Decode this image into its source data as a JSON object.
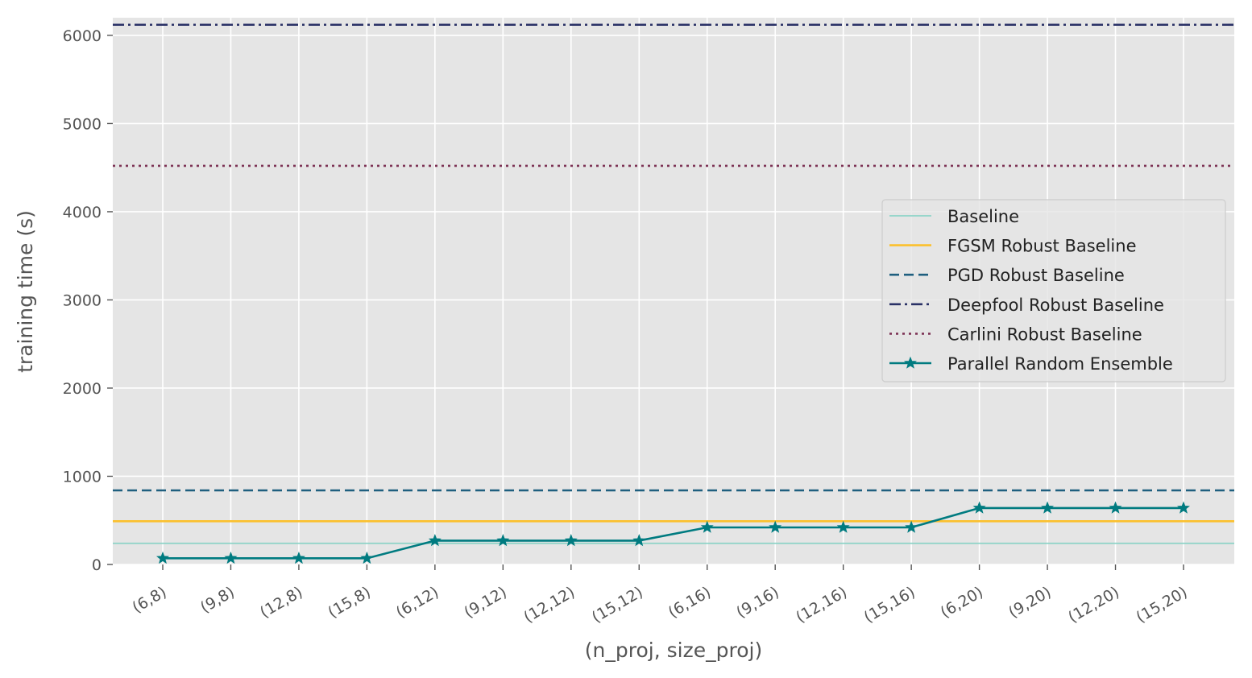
{
  "chart_data": {
    "type": "line",
    "title": "",
    "xlabel": "(n_proj, size_proj)",
    "ylabel": "training time (s)",
    "categories": [
      "(6,8)",
      "(9,8)",
      "(12,8)",
      "(15,8)",
      "(6,12)",
      "(9,12)",
      "(12,12)",
      "(15,12)",
      "(6,16)",
      "(9,16)",
      "(12,16)",
      "(15,16)",
      "(6,20)",
      "(9,20)",
      "(12,20)",
      "(15,20)"
    ],
    "ylim": [
      0,
      6200
    ],
    "yticks": [
      0,
      1000,
      2000,
      3000,
      4000,
      5000,
      6000
    ],
    "grid": true,
    "legend_position": "center-right",
    "baselines": [
      {
        "name": "Baseline",
        "value": 240,
        "color": "#8dd3c7",
        "style": "solid",
        "width": 1.8
      },
      {
        "name": "FGSM Robust Baseline",
        "value": 490,
        "color": "#fbc02d",
        "style": "solid",
        "width": 2.6
      },
      {
        "name": "PGD Robust Baseline",
        "value": 840,
        "color": "#1f5f7f",
        "style": "dashed",
        "width": 2.6
      },
      {
        "name": "Deepfool Robust Baseline",
        "value": 6120,
        "color": "#2a3166",
        "style": "dashdot",
        "width": 2.6
      },
      {
        "name": "Carlini Robust Baseline",
        "value": 4520,
        "color": "#7d3355",
        "style": "dotted",
        "width": 2.6
      }
    ],
    "series": [
      {
        "name": "Parallel Random Ensemble",
        "color": "#007b80",
        "marker": "star",
        "values": [
          70,
          70,
          70,
          70,
          270,
          270,
          270,
          270,
          420,
          420,
          420,
          420,
          640,
          640,
          640,
          640
        ]
      }
    ]
  }
}
